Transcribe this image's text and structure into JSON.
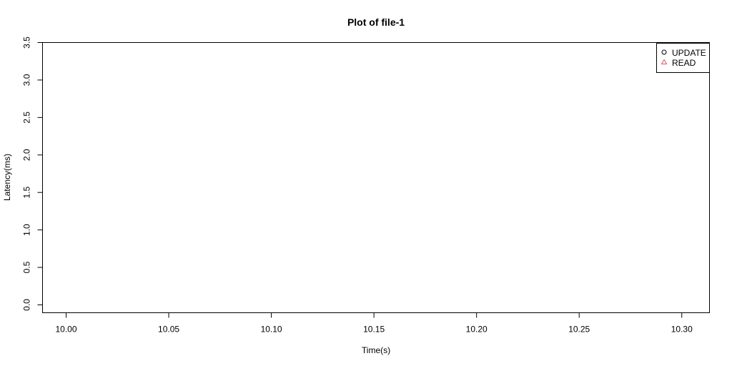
{
  "chart_data": {
    "type": "scatter",
    "title": "Plot of file-1",
    "xlabel": "Time(s)",
    "ylabel": "Latency(ms)",
    "xlim": [
      9.9885,
      10.3135
    ],
    "ylim": [
      -0.105,
      3.5
    ],
    "x_ticks": [
      "10.00",
      "10.05",
      "10.10",
      "10.15",
      "10.20",
      "10.25",
      "10.30"
    ],
    "y_ticks": [
      "0.0",
      "0.5",
      "1.0",
      "1.5",
      "2.0",
      "2.5",
      "3.0",
      "3.5"
    ],
    "grid": false,
    "legend_position": "top-right",
    "series": [
      {
        "name": "UPDATE",
        "marker": "circle",
        "color": "#000000",
        "x": [],
        "y": []
      },
      {
        "name": "READ",
        "marker": "triangle",
        "color": "#DF536B",
        "x": [],
        "y": []
      }
    ]
  }
}
